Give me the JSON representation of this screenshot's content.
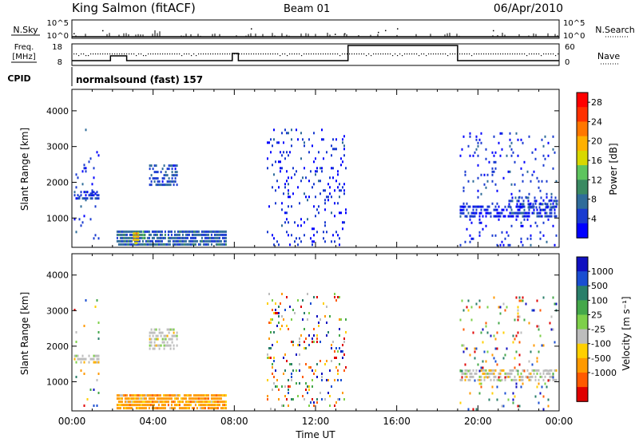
{
  "header": {
    "station": "King Salmon (fitACF)",
    "beam": "Beam 01",
    "date": "06/Apr/2010"
  },
  "status_panels": {
    "nsky_label": "N.Sky",
    "nsearch_label": "N.Search",
    "noise_ticks": [
      "10^5",
      "10^0"
    ],
    "freq_label": "Freq.",
    "freq_unit": "[MHz]",
    "freq_ticks": [
      "18",
      "8"
    ],
    "nave_label": "Nave",
    "nave_ticks": [
      "60",
      "0"
    ],
    "cpid_label": "CPID",
    "cpid_text": "normalsound (fast) 157"
  },
  "colors": {
    "power_scale": [
      "#0000ff",
      "#1a3bd0",
      "#2f6c9a",
      "#3a8a62",
      "#5ec45e",
      "#d8d800",
      "#ffb000",
      "#ff7700",
      "#ff3000",
      "#ff0000"
    ],
    "velocity_scale": [
      "#1010c0",
      "#1a4ed2",
      "#2a7f6a",
      "#44a84a",
      "#7ed04a",
      "#bdbdbd",
      "#ffd000",
      "#ff9a00",
      "#ff5a00",
      "#e00000"
    ]
  },
  "chart_data": [
    {
      "type": "heatmap",
      "title": "Power",
      "xlabel": "Time UT",
      "ylabel": "Slant Range [km]",
      "xlim": [
        "00:00",
        "24:00"
      ],
      "ylim": [
        180,
        4600
      ],
      "x_ticks": [
        "00:00",
        "04:00",
        "08:00",
        "12:00",
        "16:00",
        "20:00",
        "00:00"
      ],
      "y_ticks": [
        "1000",
        "2000",
        "3000",
        "4000"
      ],
      "colorbar_label": "Power [dB]",
      "colorbar_ticks": [
        "4",
        "8",
        "12",
        "16",
        "20",
        "24",
        "28"
      ],
      "colorbar_range": [
        0,
        30
      ],
      "regions": [
        {
          "t0": 0.1,
          "t1": 1.3,
          "r0": 1520,
          "r1": 1760,
          "value": 4,
          "density": 0.6
        },
        {
          "t0": 2.2,
          "t1": 7.6,
          "r0": 250,
          "r1": 650,
          "value": 6,
          "density": 0.85
        },
        {
          "t0": 3.0,
          "t1": 3.3,
          "r0": 300,
          "r1": 600,
          "value": 18,
          "density": 0.8
        },
        {
          "t0": 3.4,
          "t1": 3.6,
          "r0": 400,
          "r1": 650,
          "value": 12,
          "density": 0.6
        },
        {
          "t0": 3.8,
          "t1": 5.2,
          "r0": 1950,
          "r1": 2500,
          "value": 5,
          "density": 0.55
        },
        {
          "t0": 9.6,
          "t1": 13.5,
          "r0": 200,
          "r1": 3500,
          "value": 3,
          "density": 0.12
        },
        {
          "t0": 19.1,
          "t1": 23.9,
          "r0": 1000,
          "r1": 1350,
          "value": 3,
          "density": 0.55
        },
        {
          "t0": 21.5,
          "t1": 23.9,
          "r0": 1300,
          "r1": 1600,
          "value": 4,
          "density": 0.45
        },
        {
          "t0": 19.1,
          "t1": 23.9,
          "r0": 200,
          "r1": 3400,
          "value": 3,
          "density": 0.08
        },
        {
          "t0": 0.1,
          "t1": 1.3,
          "r0": 200,
          "r1": 3500,
          "value": 3,
          "density": 0.06
        }
      ]
    },
    {
      "type": "heatmap",
      "title": "Velocity",
      "xlabel": "Time UT",
      "ylabel": "Slant Range [km]",
      "xlim": [
        "00:00",
        "24:00"
      ],
      "ylim": [
        180,
        4600
      ],
      "x_ticks": [
        "00:00",
        "04:00",
        "08:00",
        "12:00",
        "16:00",
        "20:00",
        "00:00"
      ],
      "y_ticks": [
        "1000",
        "2000",
        "3000",
        "4000"
      ],
      "colorbar_label": "Velocity [m s⁻¹]",
      "colorbar_ticks": [
        "1000",
        "500",
        "100",
        "25",
        "-25",
        "-100",
        "-500",
        "-1000"
      ],
      "regions": [
        {
          "t0": 0.1,
          "t1": 1.3,
          "r0": 1520,
          "r1": 1760,
          "value": "ground",
          "density": 0.55
        },
        {
          "t0": 2.2,
          "t1": 7.6,
          "r0": 250,
          "r1": 650,
          "value": -150,
          "density": 0.85
        },
        {
          "t0": 3.8,
          "t1": 5.2,
          "r0": 1950,
          "r1": 2500,
          "value": "ground",
          "density": 0.55
        },
        {
          "t0": 9.6,
          "t1": 13.5,
          "r0": 200,
          "r1": 3500,
          "value": "mixed",
          "density": 0.12
        },
        {
          "t0": 19.1,
          "t1": 23.9,
          "r0": 1000,
          "r1": 1350,
          "value": "ground",
          "density": 0.55
        },
        {
          "t0": 19.1,
          "t1": 23.9,
          "r0": 200,
          "r1": 3400,
          "value": "mixed",
          "density": 0.08
        },
        {
          "t0": 0.1,
          "t1": 1.3,
          "r0": 200,
          "r1": 3500,
          "value": "mixed",
          "density": 0.06
        }
      ]
    }
  ]
}
